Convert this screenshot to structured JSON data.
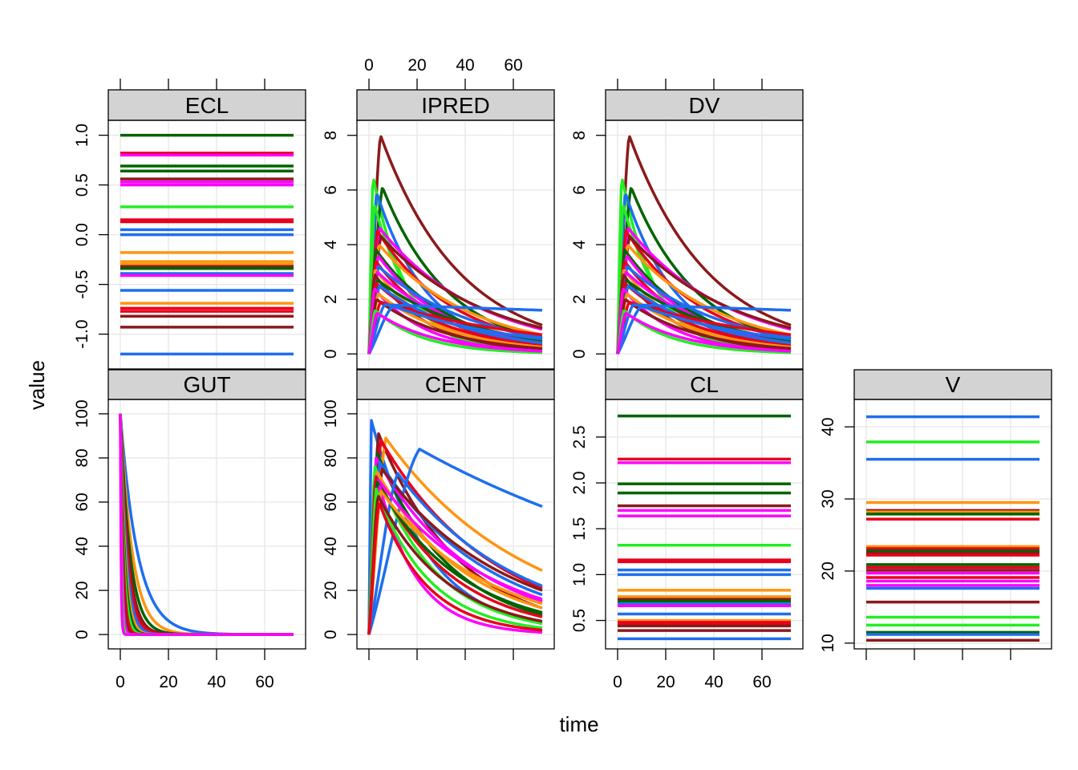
{
  "figure": {
    "xlabel": "time",
    "ylabel": "value"
  },
  "chart_data": [
    {
      "type": "line",
      "title": "ECL",
      "xlim": [
        0,
        72
      ],
      "xticks": [
        0,
        20,
        40,
        60
      ],
      "yticks": [
        "-1.0",
        "-0.5",
        "0.0",
        "0.5",
        "1.0"
      ],
      "ylim": [
        -1.35,
        1.15
      ],
      "lines": [
        {
          "value": 1.0,
          "color": "#006400"
        },
        {
          "value": 0.82,
          "color": "#e8001c"
        },
        {
          "value": 0.8,
          "color": "#ff00ff"
        },
        {
          "value": 0.69,
          "color": "#006400"
        },
        {
          "value": 0.64,
          "color": "#006400"
        },
        {
          "value": 0.56,
          "color": "#8b1a1a"
        },
        {
          "value": 0.53,
          "color": "#ff00ff"
        },
        {
          "value": 0.5,
          "color": "#ff00ff"
        },
        {
          "value": 0.28,
          "color": "#22ee22"
        },
        {
          "value": 0.15,
          "color": "#e8001c"
        },
        {
          "value": 0.13,
          "color": "#e8001c"
        },
        {
          "value": 0.05,
          "color": "#1e6ef0"
        },
        {
          "value": 0.0,
          "color": "#1e6ef0"
        },
        {
          "value": -0.18,
          "color": "#ff9411"
        },
        {
          "value": -0.27,
          "color": "#ff9411"
        },
        {
          "value": -0.3,
          "color": "#ff9411"
        },
        {
          "value": -0.32,
          "color": "#8b1a1a"
        },
        {
          "value": -0.34,
          "color": "#006400"
        },
        {
          "value": -0.39,
          "color": "#1e6ef0"
        },
        {
          "value": -0.41,
          "color": "#ff00ff"
        },
        {
          "value": -0.56,
          "color": "#1e6ef0"
        },
        {
          "value": -0.69,
          "color": "#ff9411"
        },
        {
          "value": -0.74,
          "color": "#e8001c"
        },
        {
          "value": -0.77,
          "color": "#e8001c"
        },
        {
          "value": -0.82,
          "color": "#8b1a1a"
        },
        {
          "value": -0.93,
          "color": "#8b1a1a"
        },
        {
          "value": -1.2,
          "color": "#1e6ef0"
        }
      ]
    },
    {
      "type": "line",
      "title": "IPRED",
      "xlim": [
        0,
        72
      ],
      "xticks": [
        0,
        20,
        40,
        60
      ],
      "yticks": [
        "0",
        "2",
        "4",
        "6",
        "8"
      ],
      "ylim": [
        -0.55,
        8.55
      ],
      "curves": [
        {
          "peak": 8.0,
          "tmax": 4.8,
          "end": 1.05,
          "color": "#8b1a1a"
        },
        {
          "peak": 6.5,
          "tmax": 1.7,
          "end": 0.05,
          "color": "#22ee22"
        },
        {
          "peak": 6.1,
          "tmax": 5.6,
          "end": 0.55,
          "color": "#006400"
        },
        {
          "peak": 5.9,
          "tmax": 3.2,
          "end": 0.25,
          "color": "#1e6ef0"
        },
        {
          "peak": 5.5,
          "tmax": 2.2,
          "end": 0.08,
          "color": "#22ee22"
        },
        {
          "peak": 4.6,
          "tmax": 4.5,
          "end": 0.9,
          "color": "#ff00ff"
        },
        {
          "peak": 4.5,
          "tmax": 3.5,
          "end": 0.55,
          "color": "#e8001c"
        },
        {
          "peak": 4.3,
          "tmax": 5.0,
          "end": 0.95,
          "color": "#8b1a1a"
        },
        {
          "peak": 4.0,
          "tmax": 4.2,
          "end": 0.7,
          "color": "#ff9411"
        },
        {
          "peak": 3.8,
          "tmax": 3.0,
          "end": 0.4,
          "color": "#006400"
        },
        {
          "peak": 3.6,
          "tmax": 3.8,
          "end": 0.35,
          "color": "#ff00ff"
        },
        {
          "peak": 3.4,
          "tmax": 2.8,
          "end": 0.3,
          "color": "#e8001c"
        },
        {
          "peak": 3.2,
          "tmax": 4.0,
          "end": 0.6,
          "color": "#1e6ef0"
        },
        {
          "peak": 3.1,
          "tmax": 2.6,
          "end": 0.2,
          "color": "#ff9411"
        },
        {
          "peak": 3.0,
          "tmax": 3.4,
          "end": 0.45,
          "color": "#ff00ff"
        },
        {
          "peak": 2.9,
          "tmax": 2.4,
          "end": 0.15,
          "color": "#8b1a1a"
        },
        {
          "peak": 2.7,
          "tmax": 3.6,
          "end": 0.5,
          "color": "#006400"
        },
        {
          "peak": 2.6,
          "tmax": 2.9,
          "end": 0.3,
          "color": "#e8001c"
        },
        {
          "peak": 2.5,
          "tmax": 4.4,
          "end": 0.4,
          "color": "#1e6ef0"
        },
        {
          "peak": 2.4,
          "tmax": 2.2,
          "end": 0.1,
          "color": "#ff00ff"
        },
        {
          "peak": 2.2,
          "tmax": 3.9,
          "end": 0.25,
          "color": "#ff9411"
        },
        {
          "peak": 2.0,
          "tmax": 3.1,
          "end": 0.2,
          "color": "#8b1a1a"
        },
        {
          "peak": 1.9,
          "tmax": 4.8,
          "end": 0.7,
          "color": "#e8001c"
        },
        {
          "peak": 1.8,
          "tmax": 6.5,
          "end": 1.6,
          "color": "#1e6ef0"
        },
        {
          "peak": 1.75,
          "tmax": 10.0,
          "end": 0.55,
          "color": "#1e6ef0"
        },
        {
          "peak": 1.6,
          "tmax": 2.6,
          "end": 0.05,
          "color": "#22ee22"
        },
        {
          "peak": 1.5,
          "tmax": 3.3,
          "end": 0.1,
          "color": "#ff00ff"
        }
      ]
    },
    {
      "type": "line",
      "title": "DV",
      "xlim": [
        0,
        72
      ],
      "xticks": [
        0,
        20,
        40,
        60
      ],
      "yticks": [
        "0",
        "2",
        "4",
        "6",
        "8"
      ],
      "ylim": [
        -0.55,
        8.55
      ],
      "curves": [
        {
          "peak": 8.0,
          "tmax": 4.8,
          "end": 1.05,
          "color": "#8b1a1a"
        },
        {
          "peak": 6.5,
          "tmax": 1.7,
          "end": 0.05,
          "color": "#22ee22"
        },
        {
          "peak": 6.1,
          "tmax": 5.6,
          "end": 0.55,
          "color": "#006400"
        },
        {
          "peak": 5.9,
          "tmax": 3.2,
          "end": 0.25,
          "color": "#1e6ef0"
        },
        {
          "peak": 5.5,
          "tmax": 2.2,
          "end": 0.08,
          "color": "#22ee22"
        },
        {
          "peak": 4.6,
          "tmax": 4.5,
          "end": 0.9,
          "color": "#ff00ff"
        },
        {
          "peak": 4.5,
          "tmax": 3.5,
          "end": 0.55,
          "color": "#e8001c"
        },
        {
          "peak": 4.3,
          "tmax": 5.0,
          "end": 0.95,
          "color": "#8b1a1a"
        },
        {
          "peak": 4.0,
          "tmax": 4.2,
          "end": 0.7,
          "color": "#ff9411"
        },
        {
          "peak": 3.8,
          "tmax": 3.0,
          "end": 0.4,
          "color": "#006400"
        },
        {
          "peak": 3.6,
          "tmax": 3.8,
          "end": 0.35,
          "color": "#ff00ff"
        },
        {
          "peak": 3.4,
          "tmax": 2.8,
          "end": 0.3,
          "color": "#e8001c"
        },
        {
          "peak": 3.2,
          "tmax": 4.0,
          "end": 0.6,
          "color": "#1e6ef0"
        },
        {
          "peak": 3.1,
          "tmax": 2.6,
          "end": 0.2,
          "color": "#ff9411"
        },
        {
          "peak": 3.0,
          "tmax": 3.4,
          "end": 0.45,
          "color": "#ff00ff"
        },
        {
          "peak": 2.9,
          "tmax": 2.4,
          "end": 0.15,
          "color": "#8b1a1a"
        },
        {
          "peak": 2.7,
          "tmax": 3.6,
          "end": 0.5,
          "color": "#006400"
        },
        {
          "peak": 2.6,
          "tmax": 2.9,
          "end": 0.3,
          "color": "#e8001c"
        },
        {
          "peak": 2.5,
          "tmax": 4.4,
          "end": 0.4,
          "color": "#1e6ef0"
        },
        {
          "peak": 2.4,
          "tmax": 2.2,
          "end": 0.1,
          "color": "#ff00ff"
        },
        {
          "peak": 2.2,
          "tmax": 3.9,
          "end": 0.25,
          "color": "#ff9411"
        },
        {
          "peak": 2.0,
          "tmax": 3.1,
          "end": 0.2,
          "color": "#8b1a1a"
        },
        {
          "peak": 1.9,
          "tmax": 4.8,
          "end": 0.7,
          "color": "#e8001c"
        },
        {
          "peak": 1.8,
          "tmax": 6.5,
          "end": 1.6,
          "color": "#1e6ef0"
        },
        {
          "peak": 1.75,
          "tmax": 10.0,
          "end": 0.55,
          "color": "#1e6ef0"
        },
        {
          "peak": 1.6,
          "tmax": 2.6,
          "end": 0.05,
          "color": "#22ee22"
        },
        {
          "peak": 1.5,
          "tmax": 3.3,
          "end": 0.1,
          "color": "#ff00ff"
        }
      ]
    },
    {
      "type": "line",
      "title": "GUT",
      "xlim": [
        0,
        72
      ],
      "xticks": [
        0,
        20,
        40,
        60
      ],
      "yticks": [
        "0",
        "20",
        "40",
        "60",
        "80",
        "100"
      ],
      "ylim": [
        -6.5,
        106.5
      ],
      "decays": [
        {
          "start": 100,
          "halflife": 5.0,
          "color": "#1e6ef0"
        },
        {
          "start": 100,
          "halflife": 3.5,
          "color": "#ff9411"
        },
        {
          "start": 100,
          "halflife": 2.8,
          "color": "#006400"
        },
        {
          "start": 100,
          "halflife": 2.3,
          "color": "#8b1a1a"
        },
        {
          "start": 100,
          "halflife": 2.0,
          "color": "#e8001c"
        },
        {
          "start": 100,
          "halflife": 1.7,
          "color": "#1e6ef0"
        },
        {
          "start": 100,
          "halflife": 1.4,
          "color": "#ff9411"
        },
        {
          "start": 100,
          "halflife": 1.2,
          "color": "#006400"
        },
        {
          "start": 100,
          "halflife": 1.0,
          "color": "#22ee22"
        },
        {
          "start": 100,
          "halflife": 0.8,
          "color": "#e8001c"
        },
        {
          "start": 100,
          "halflife": 0.6,
          "color": "#8b1a1a"
        },
        {
          "start": 100,
          "halflife": 0.45,
          "color": "#ff00ff"
        },
        {
          "start": 100,
          "halflife": 0.3,
          "color": "#22ee22"
        },
        {
          "start": 100,
          "halflife": 0.2,
          "color": "#ff00ff"
        }
      ]
    },
    {
      "type": "line",
      "title": "CENT",
      "xlim": [
        0,
        72
      ],
      "xticks": [
        0,
        20,
        40,
        60
      ],
      "yticks": [
        "0",
        "20",
        "40",
        "60",
        "80",
        "100"
      ],
      "ylim": [
        -6.5,
        106.5
      ],
      "curves": [
        {
          "peak": 97,
          "tmax": 1.0,
          "end": 5,
          "color": "#1e6ef0"
        },
        {
          "peak": 91,
          "tmax": 4.0,
          "end": 12,
          "color": "#8b1a1a"
        },
        {
          "peak": 89,
          "tmax": 7.0,
          "end": 29,
          "color": "#ff9411"
        },
        {
          "peak": 88,
          "tmax": 5.0,
          "end": 21,
          "color": "#e8001c"
        },
        {
          "peak": 84,
          "tmax": 21.0,
          "end": 58,
          "color": "#1e6ef0"
        },
        {
          "peak": 82,
          "tmax": 3.5,
          "end": 9,
          "color": "#006400"
        },
        {
          "peak": 80,
          "tmax": 3.0,
          "end": 15,
          "color": "#ff00ff"
        },
        {
          "peak": 78,
          "tmax": 4.5,
          "end": 18,
          "color": "#1e6ef0"
        },
        {
          "peak": 76,
          "tmax": 2.5,
          "end": 5,
          "color": "#22ee22"
        },
        {
          "peak": 75,
          "tmax": 5.5,
          "end": 20,
          "color": "#8b1a1a"
        },
        {
          "peak": 74,
          "tmax": 3.2,
          "end": 12,
          "color": "#ff9411"
        },
        {
          "peak": 73,
          "tmax": 12.0,
          "end": 22,
          "color": "#1e6ef0"
        },
        {
          "peak": 72,
          "tmax": 2.8,
          "end": 8,
          "color": "#e8001c"
        },
        {
          "peak": 70,
          "tmax": 4.0,
          "end": 16,
          "color": "#ff00ff"
        },
        {
          "peak": 69,
          "tmax": 3.5,
          "end": 10,
          "color": "#006400"
        },
        {
          "peak": 67,
          "tmax": 4.5,
          "end": 1,
          "color": "#ff00ff"
        },
        {
          "peak": 66,
          "tmax": 3.0,
          "end": 3,
          "color": "#22ee22"
        },
        {
          "peak": 65,
          "tmax": 5.0,
          "end": 14,
          "color": "#ff9411"
        },
        {
          "peak": 63,
          "tmax": 3.8,
          "end": 6,
          "color": "#8b1a1a"
        },
        {
          "peak": 60,
          "tmax": 4.2,
          "end": 2,
          "color": "#e8001c"
        }
      ]
    },
    {
      "type": "line",
      "title": "CL",
      "xlim": [
        0,
        72
      ],
      "xticks": [
        0,
        20,
        40,
        60
      ],
      "yticks": [
        "0.5",
        "1.0",
        "1.5",
        "2.0",
        "2.5"
      ],
      "ylim": [
        0.19,
        2.91
      ],
      "lines": [
        {
          "value": 2.73,
          "color": "#006400"
        },
        {
          "value": 2.26,
          "color": "#e8001c"
        },
        {
          "value": 2.22,
          "color": "#ff00ff"
        },
        {
          "value": 1.99,
          "color": "#006400"
        },
        {
          "value": 1.89,
          "color": "#006400"
        },
        {
          "value": 1.75,
          "color": "#8b1a1a"
        },
        {
          "value": 1.7,
          "color": "#ff00ff"
        },
        {
          "value": 1.64,
          "color": "#ff00ff"
        },
        {
          "value": 1.32,
          "color": "#22ee22"
        },
        {
          "value": 1.16,
          "color": "#e8001c"
        },
        {
          "value": 1.14,
          "color": "#e8001c"
        },
        {
          "value": 1.05,
          "color": "#1e6ef0"
        },
        {
          "value": 1.0,
          "color": "#1e6ef0"
        },
        {
          "value": 0.83,
          "color": "#ff9411"
        },
        {
          "value": 0.76,
          "color": "#ff9411"
        },
        {
          "value": 0.74,
          "color": "#ff9411"
        },
        {
          "value": 0.73,
          "color": "#8b1a1a"
        },
        {
          "value": 0.71,
          "color": "#006400"
        },
        {
          "value": 0.68,
          "color": "#1e6ef0"
        },
        {
          "value": 0.66,
          "color": "#ff00ff"
        },
        {
          "value": 0.57,
          "color": "#1e6ef0"
        },
        {
          "value": 0.5,
          "color": "#ff9411"
        },
        {
          "value": 0.48,
          "color": "#e8001c"
        },
        {
          "value": 0.46,
          "color": "#e8001c"
        },
        {
          "value": 0.44,
          "color": "#8b1a1a"
        },
        {
          "value": 0.39,
          "color": "#8b1a1a"
        },
        {
          "value": 0.3,
          "color": "#1e6ef0"
        }
      ]
    },
    {
      "type": "line",
      "title": "V",
      "xlim": [
        0,
        72
      ],
      "xticks": [
        0,
        20,
        40,
        60
      ],
      "yticks": [
        "10",
        "20",
        "30",
        "40"
      ],
      "ylim": [
        9.2,
        43.8
      ],
      "lines": [
        {
          "value": 41.4,
          "color": "#1e6ef0"
        },
        {
          "value": 37.9,
          "color": "#22ee22"
        },
        {
          "value": 35.5,
          "color": "#1e6ef0"
        },
        {
          "value": 29.5,
          "color": "#ff9411"
        },
        {
          "value": 28.4,
          "color": "#8b1a1a"
        },
        {
          "value": 28.2,
          "color": "#ff9411"
        },
        {
          "value": 27.9,
          "color": "#006400"
        },
        {
          "value": 27.2,
          "color": "#e8001c"
        },
        {
          "value": 23.4,
          "color": "#ff9411"
        },
        {
          "value": 23.1,
          "color": "#e8001c"
        },
        {
          "value": 22.8,
          "color": "#006400"
        },
        {
          "value": 22.5,
          "color": "#8b1a1a"
        },
        {
          "value": 22.2,
          "color": "#e8001c"
        },
        {
          "value": 20.9,
          "color": "#006400"
        },
        {
          "value": 20.5,
          "color": "#e8001c"
        },
        {
          "value": 20.1,
          "color": "#8b1a1a"
        },
        {
          "value": 19.7,
          "color": "#ff00ff"
        },
        {
          "value": 19.1,
          "color": "#e8001c"
        },
        {
          "value": 18.6,
          "color": "#ff00ff"
        },
        {
          "value": 18.0,
          "color": "#ff00ff"
        },
        {
          "value": 17.6,
          "color": "#1e6ef0"
        },
        {
          "value": 15.7,
          "color": "#8b1a1a"
        },
        {
          "value": 13.6,
          "color": "#22ee22"
        },
        {
          "value": 12.5,
          "color": "#22ee22"
        },
        {
          "value": 11.5,
          "color": "#006400"
        },
        {
          "value": 11.2,
          "color": "#1e6ef0"
        },
        {
          "value": 10.4,
          "color": "#8b1a1a"
        }
      ]
    }
  ]
}
